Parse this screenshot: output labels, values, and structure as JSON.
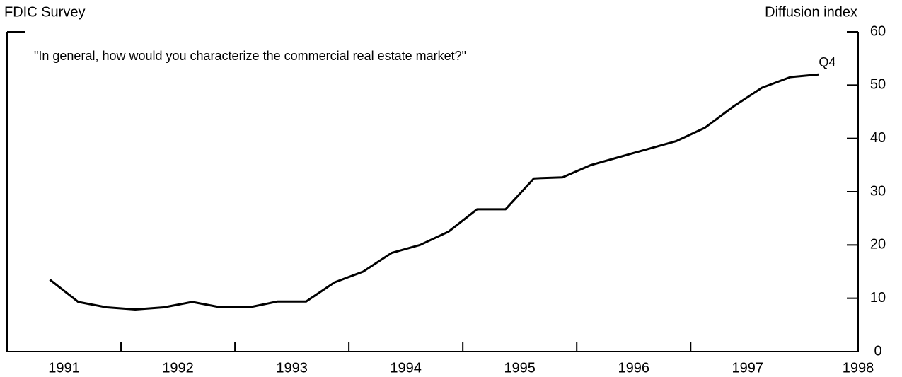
{
  "chart_data": {
    "type": "line",
    "title": "FDIC Survey",
    "y_axis_label": "Diffusion index",
    "subtitle": "\"In general, how would you characterize the commercial real estate market?\"",
    "annotation": "Q4",
    "year_labels": [
      "1991",
      "1992",
      "1993",
      "1994",
      "1995",
      "1996",
      "1997",
      "1998"
    ],
    "x": [
      1991.375,
      1991.625,
      1991.875,
      1992.125,
      1992.375,
      1992.625,
      1992.875,
      1993.125,
      1993.375,
      1993.625,
      1993.875,
      1994.125,
      1994.375,
      1994.625,
      1994.875,
      1995.125,
      1995.375,
      1995.625,
      1995.875,
      1996.125,
      1996.375,
      1996.625,
      1996.875,
      1997.125,
      1997.375,
      1997.625,
      1997.875,
      1998.125
    ],
    "values": [
      13.5,
      9.3,
      8.3,
      7.9,
      8.3,
      9.3,
      8.3,
      8.3,
      9.4,
      9.4,
      13,
      15,
      18.5,
      20,
      22.5,
      26.7,
      26.7,
      32.5,
      32.7,
      35,
      36.5,
      38,
      39.5,
      42,
      46,
      49.5,
      51.5,
      52
    ],
    "color": "#000000",
    "xlim": [
      1991,
      1998.47
    ],
    "xticks": [
      1992,
      1993,
      1994,
      1995,
      1996,
      1997
    ],
    "ylim": [
      0,
      60
    ],
    "yticks": [
      0,
      10,
      20,
      30,
      40,
      50,
      60
    ]
  }
}
